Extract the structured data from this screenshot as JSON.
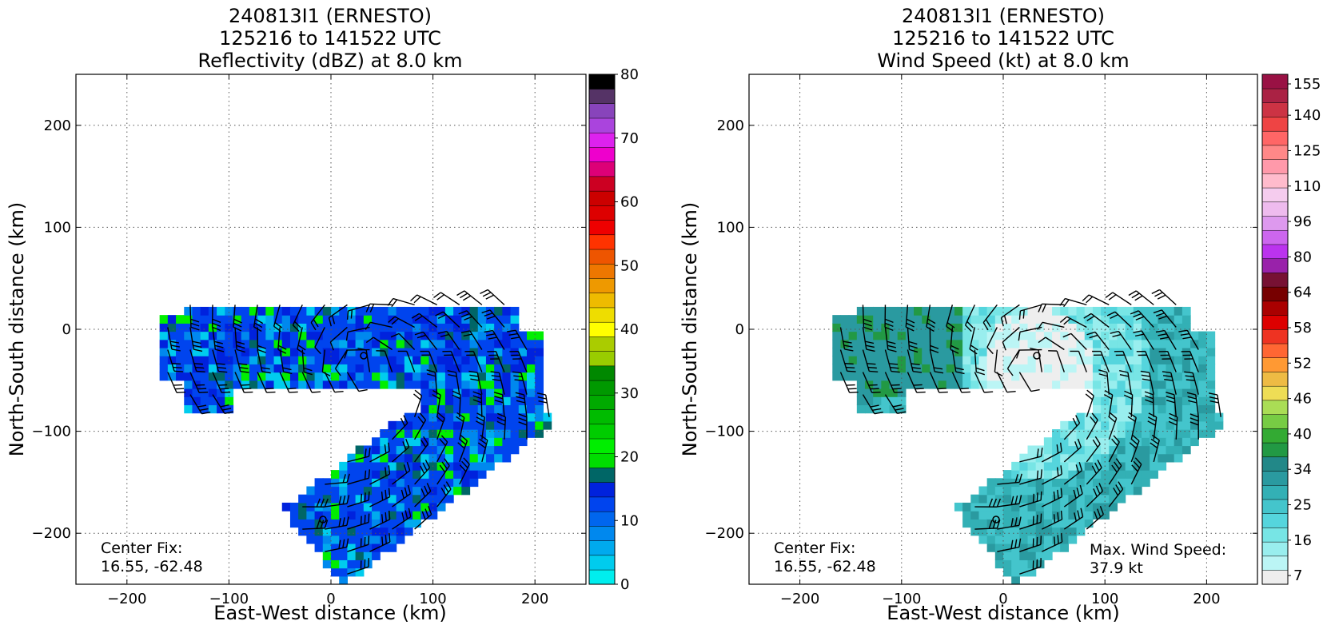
{
  "chart_data": [
    {
      "type": "heatmap",
      "title": [
        "240813I1 (ERNESTO)",
        "125216 to 141522 UTC",
        "Reflectivity (dBZ) at 8.0 km"
      ],
      "xlabel": "East-West distance (km)",
      "ylabel": "North-South distance (km)",
      "xlim": [
        -250,
        250
      ],
      "ylim": [
        -250,
        250
      ],
      "xticks": [
        -200,
        -100,
        0,
        100,
        200
      ],
      "yticks": [
        -200,
        -100,
        0,
        100,
        200
      ],
      "xtick_labels": [
        "−200",
        "−100",
        "0",
        "100",
        "200"
      ],
      "ytick_labels": [
        "−200",
        "−100",
        "0",
        "100",
        "200"
      ],
      "grid": true,
      "annotation": [
        "Center Fix:",
        "16.55, -62.48"
      ],
      "colorbar": {
        "min": 0,
        "max": 80,
        "tick_values": [
          0,
          10,
          20,
          30,
          40,
          50,
          60,
          70,
          80
        ],
        "tick_labels": [
          "0",
          "10",
          "20",
          "30",
          "40",
          "50",
          "60",
          "70",
          "80"
        ],
        "colors": [
          "#00eeee",
          "#00ccee",
          "#00aaee",
          "#0088ee",
          "#0066ee",
          "#0044ee",
          "#0022dd",
          "#006666",
          "#00dd00",
          "#00ee00",
          "#00cc00",
          "#00bb00",
          "#00aa00",
          "#009900",
          "#008800",
          "#99cc00",
          "#aacc00",
          "#ffff00",
          "#eedd00",
          "#eebb00",
          "#ee9900",
          "#ee7700",
          "#ee5500",
          "#ff3300",
          "#ee0000",
          "#dd0000",
          "#cc0000",
          "#cc0022",
          "#dd0077",
          "#ee00cc",
          "#dd22ee",
          "#aa44dd",
          "#8844bb",
          "#553366",
          "#000000"
        ]
      },
      "field": "reflectivity"
    },
    {
      "type": "heatmap",
      "title": [
        "240813I1 (ERNESTO)",
        "125216 to 141522 UTC",
        "Wind Speed (kt) at 8.0 km"
      ],
      "xlabel": "East-West distance (km)",
      "ylabel": "North-South distance (km)",
      "xlim": [
        -250,
        250
      ],
      "ylim": [
        -250,
        250
      ],
      "xticks": [
        -200,
        -100,
        0,
        100,
        200
      ],
      "yticks": [
        -200,
        -100,
        0,
        100,
        200
      ],
      "xtick_labels": [
        "−200",
        "−100",
        "0",
        "100",
        "200"
      ],
      "ytick_labels": [
        "−200",
        "−100",
        "0",
        "100",
        "200"
      ],
      "grid": true,
      "annotation": [
        "Center Fix:",
        "16.55, -62.48"
      ],
      "annotation2": [
        "Max. Wind Speed:",
        "37.9 kt"
      ],
      "colorbar": {
        "tick_labels": [
          "7",
          "16",
          "25",
          "34",
          "40",
          "46",
          "52",
          "58",
          "64",
          "80",
          "96",
          "110",
          "125",
          "140",
          "155"
        ],
        "colors": [
          "#eeeeee",
          "#bbf5f5",
          "#99eeee",
          "#77e5e5",
          "#55d5dd",
          "#44c5cc",
          "#33b0b5",
          "#2a9aa0",
          "#228888",
          "#229944",
          "#33aa33",
          "#77cc44",
          "#aadd55",
          "#eedd55",
          "#eebb44",
          "#ff9933",
          "#ff6633",
          "#ee3322",
          "#dd0000",
          "#aa0000",
          "#770000",
          "#771133",
          "#9922aa",
          "#bb33ee",
          "#cc66ee",
          "#dd99ee",
          "#eebbee",
          "#f5ccee",
          "#ffbbcc",
          "#ff99aa",
          "#ff8888",
          "#ff6666",
          "#ee4444",
          "#cc3344",
          "#aa2244",
          "#991144"
        ]
      },
      "field": "wind"
    }
  ]
}
